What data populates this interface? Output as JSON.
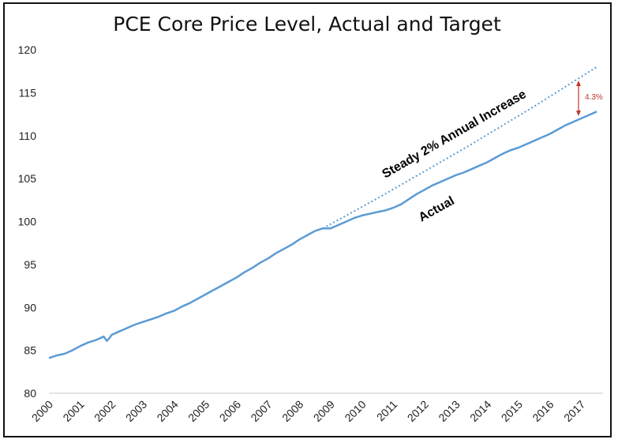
{
  "chart_data": {
    "type": "line",
    "title": "PCE Core Price Level, Actual and Target",
    "xlabel": "",
    "ylabel": "",
    "ylim": [
      80,
      120
    ],
    "yticks": [
      "80",
      "85",
      "90",
      "95",
      "100",
      "105",
      "110",
      "115",
      "120"
    ],
    "xlim": [
      2000.0,
      2017.7
    ],
    "xticks": [
      "2000",
      "2001",
      "2002",
      "2003",
      "2004",
      "2005",
      "2006",
      "2007",
      "2008",
      "2009",
      "2010",
      "2011",
      "2012",
      "2013",
      "2014",
      "2015",
      "2016",
      "2017"
    ],
    "grid": false,
    "legend": "none",
    "series": [
      {
        "name": "Actual",
        "style": "solid",
        "color": "#5b9bd5",
        "x": [
          2000.0,
          2000.25,
          2000.5,
          2000.75,
          2001.0,
          2001.25,
          2001.5,
          2001.75,
          2001.85,
          2001.95,
          2002.0,
          2002.25,
          2002.5,
          2002.75,
          2003.0,
          2003.25,
          2003.5,
          2003.75,
          2004.0,
          2004.25,
          2004.5,
          2004.75,
          2005.0,
          2005.25,
          2005.5,
          2005.75,
          2006.0,
          2006.25,
          2006.5,
          2006.75,
          2007.0,
          2007.25,
          2007.5,
          2007.75,
          2008.0,
          2008.25,
          2008.5,
          2008.75,
          2009.0,
          2009.25,
          2009.5,
          2009.75,
          2010.0,
          2010.25,
          2010.5,
          2010.75,
          2011.0,
          2011.25,
          2011.5,
          2011.75,
          2012.0,
          2012.25,
          2012.5,
          2012.75,
          2013.0,
          2013.25,
          2013.5,
          2013.75,
          2014.0,
          2014.25,
          2014.5,
          2014.75,
          2015.0,
          2015.25,
          2015.5,
          2015.75,
          2016.0,
          2016.25,
          2016.5,
          2016.75,
          2017.0,
          2017.25,
          2017.5
        ],
        "values": [
          84.1,
          84.4,
          84.6,
          85.0,
          85.5,
          85.9,
          86.2,
          86.6,
          86.1,
          86.5,
          86.8,
          87.2,
          87.6,
          88.0,
          88.3,
          88.6,
          88.9,
          89.3,
          89.6,
          90.1,
          90.5,
          91.0,
          91.5,
          92.0,
          92.5,
          93.0,
          93.5,
          94.1,
          94.6,
          95.2,
          95.7,
          96.3,
          96.8,
          97.3,
          97.9,
          98.4,
          98.9,
          99.2,
          99.2,
          99.6,
          100.0,
          100.4,
          100.7,
          100.9,
          101.1,
          101.3,
          101.6,
          102.0,
          102.6,
          103.2,
          103.7,
          104.2,
          104.6,
          105.0,
          105.4,
          105.7,
          106.1,
          106.5,
          106.9,
          107.4,
          107.9,
          108.3,
          108.6,
          109.0,
          109.4,
          109.8,
          110.2,
          110.7,
          111.2,
          111.6,
          112.0,
          112.4,
          112.8
        ]
      },
      {
        "name": "Steady 2% Annual Increase",
        "style": "dotted",
        "color": "#5b9bd5",
        "x": [
          2008.75,
          2009.5,
          2010.5,
          2011.5,
          2012.5,
          2013.5,
          2014.5,
          2015.5,
          2016.5,
          2017.5
        ],
        "values": [
          99.2,
          100.7,
          102.7,
          104.8,
          106.9,
          109.0,
          111.2,
          113.4,
          115.7,
          118.0
        ]
      }
    ],
    "annotations": {
      "target_label": "Steady 2% Annual Increase",
      "actual_label": "Actual",
      "gap_label": "4.3%"
    }
  }
}
